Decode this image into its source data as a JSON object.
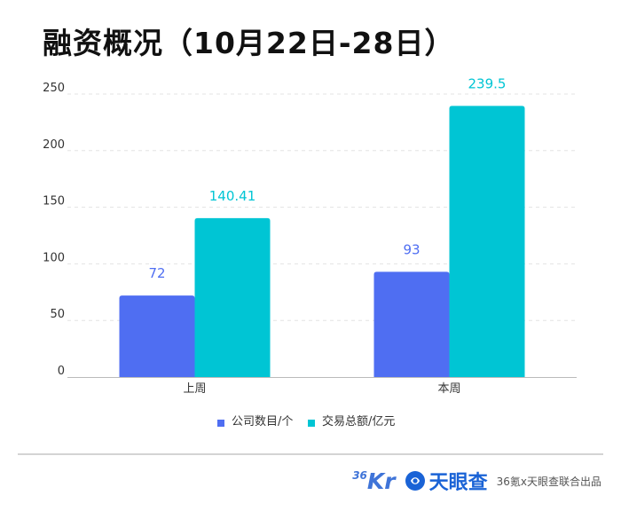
{
  "title": "融资概况（10月22日-28日）",
  "chart_data": {
    "type": "bar",
    "categories": [
      "上周",
      "本周"
    ],
    "series": [
      {
        "name": "公司数目/个",
        "values": [
          72,
          93
        ],
        "labels": [
          "72",
          "93"
        ],
        "color": "#4f6ef2",
        "label_color": "#4f6ef2"
      },
      {
        "name": "交易总额/亿元",
        "values": [
          140.41,
          239.5
        ],
        "labels": [
          "140.41",
          "239.5"
        ],
        "color": "#00c5d4",
        "label_color": "#00c5d4"
      }
    ],
    "yticks": [
      "0",
      "50",
      "100",
      "150",
      "200",
      "250"
    ],
    "ylim": [
      0,
      250
    ],
    "grid": true,
    "legend_position": "bottom-center"
  },
  "footer": {
    "logo_36kr_sup": "36",
    "logo_36kr_main": "Kr",
    "logo_tianyancha": "天眼查",
    "credit": "36氪x天眼查联合出品",
    "icons": [
      "36kr-logo-icon",
      "tianyancha-logo-icon"
    ]
  }
}
